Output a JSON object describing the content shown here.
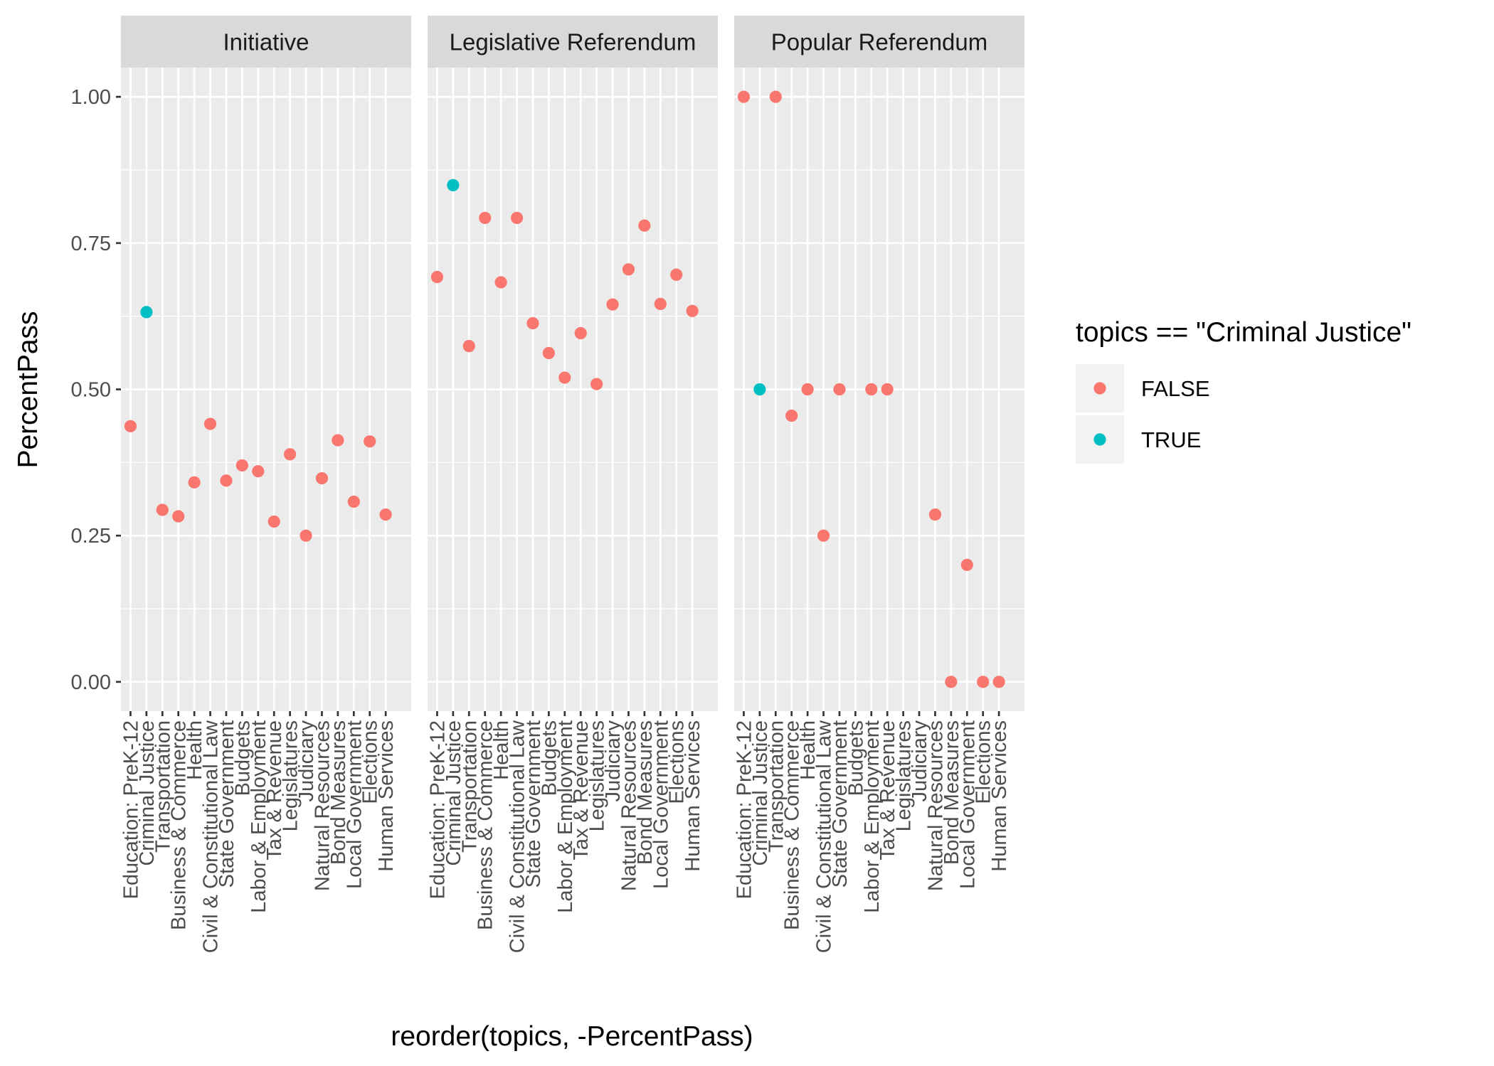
{
  "chart_data": {
    "type": "scatter",
    "facets": [
      "Initiative",
      "Legislative Referendum",
      "Popular Referendum"
    ],
    "categories": [
      "Education: PreK-12",
      "Criminal Justice",
      "Transportation",
      "Business & Commerce",
      "Health",
      "Civil & Constitutional Law",
      "State Government",
      "Budgets",
      "Labor & Employment",
      "Tax & Revenue",
      "Legislatures",
      "Judiciary",
      "Natural Resources",
      "Bond Measures",
      "Local Government",
      "Elections",
      "Human Services"
    ],
    "xlabel": "reorder(topics, -PercentPass)",
    "ylabel": "PercentPass",
    "ylim": [
      -0.05,
      1.05
    ],
    "yticks": [
      0,
      0.25,
      0.5,
      0.75,
      1
    ],
    "ytick_labels": [
      "0.00",
      "0.25",
      "0.50",
      "0.75",
      "1.00"
    ],
    "legend": {
      "title": "topics == \"Criminal Justice\"",
      "position": "right",
      "entries": [
        {
          "label": "FALSE",
          "color": "#F8766D"
        },
        {
          "label": "TRUE",
          "color": "#00BFC4"
        }
      ]
    },
    "series": [
      {
        "facet": "Initiative",
        "values": [
          0.437,
          0.632,
          0.294,
          0.283,
          0.341,
          0.441,
          0.344,
          0.37,
          0.36,
          0.274,
          0.389,
          0.25,
          0.348,
          0.413,
          0.308,
          0.411,
          0.286
        ]
      },
      {
        "facet": "Legislative Referendum",
        "values": [
          0.692,
          0.849,
          0.574,
          0.793,
          0.683,
          0.793,
          0.613,
          0.562,
          0.52,
          0.596,
          0.509,
          0.645,
          0.705,
          0.78,
          0.646,
          0.696,
          0.634
        ]
      },
      {
        "facet": "Popular Referendum",
        "values": [
          1.0,
          0.5,
          1.0,
          0.455,
          0.5,
          0.25,
          0.5,
          null,
          0.5,
          0.5,
          null,
          null,
          0.286,
          0.0,
          0.2,
          0.0,
          0.0
        ]
      }
    ],
    "highlight_category": "Criminal Justice",
    "colors": {
      "false": "#F8766D",
      "true": "#00BFC4",
      "panel": "#EBEBEB",
      "strip": "#D9D9D9",
      "grid": "#ffffff"
    }
  }
}
